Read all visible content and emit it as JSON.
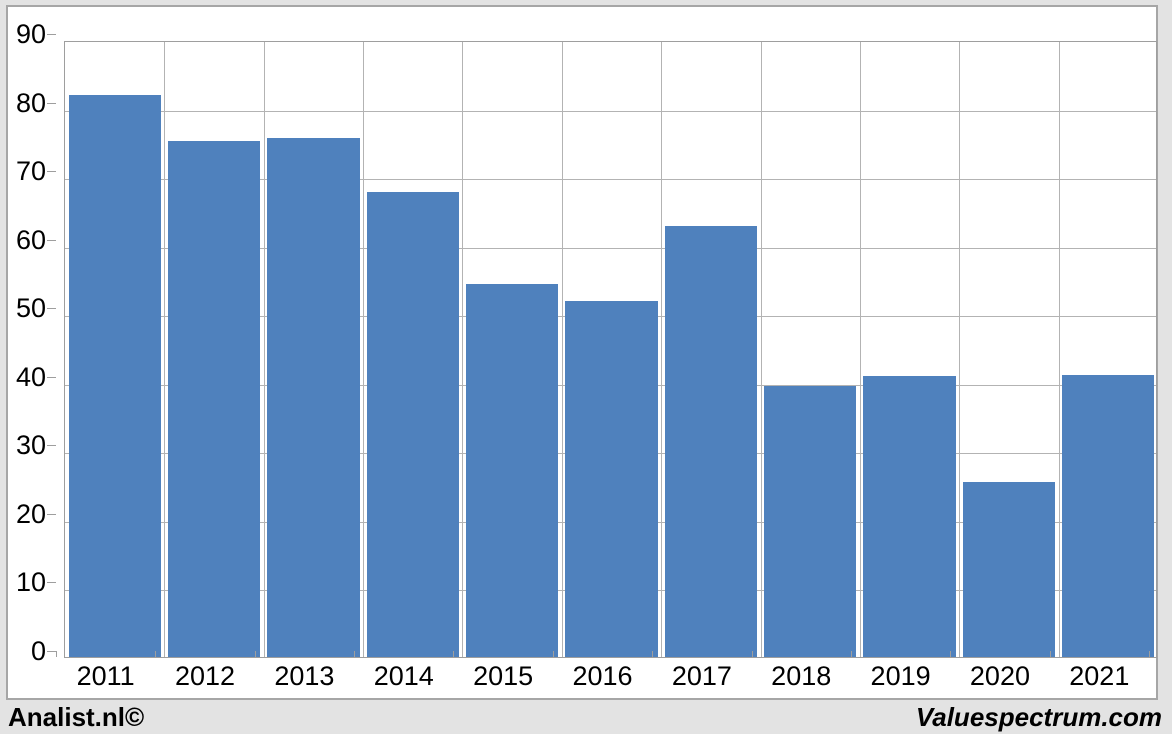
{
  "chart_data": {
    "type": "bar",
    "title": "",
    "xlabel": "",
    "ylabel": "",
    "categories": [
      "2011",
      "2012",
      "2013",
      "2014",
      "2015",
      "2016",
      "2017",
      "2018",
      "2019",
      "2020",
      "2021"
    ],
    "values": [
      82,
      75.3,
      75.7,
      67.8,
      54.4,
      52,
      62.8,
      39.6,
      41,
      25.5,
      41.2
    ],
    "ylim": [
      0,
      90
    ],
    "ytick_step": 10,
    "yticks": [
      0,
      10,
      20,
      30,
      40,
      50,
      60,
      70,
      80,
      90
    ],
    "grid": true,
    "legend": null,
    "bar_color": "#4F81BD",
    "gridline_color": "#b3b3b3",
    "axis_color": "#9e9e9e",
    "plot_background": "#ffffff",
    "outer_background": "#e3e3e3",
    "panel_border_color": "#a6a6a6"
  },
  "footer": {
    "left_brand": "Analist.nl©",
    "right_brand": "Valuespectrum.com"
  }
}
